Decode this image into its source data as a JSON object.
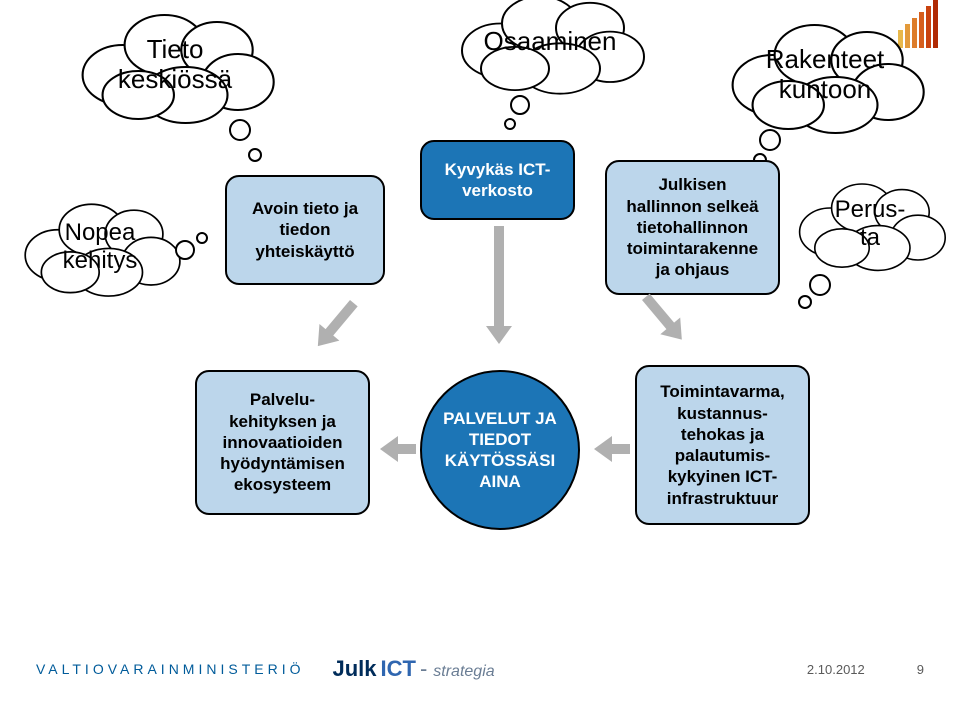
{
  "clouds": {
    "tieto": {
      "label": "Tieto\nkeskiössä"
    },
    "osaaminen": {
      "label": "Osaaminen"
    },
    "rakenteet": {
      "label": "Rakenteet\nkuntoon"
    },
    "nopea": {
      "label": "Nopea\nkehitys"
    },
    "perusta": {
      "label": "Perus-\nta"
    }
  },
  "boxes": {
    "avoin": {
      "label": "Avoin tieto ja\ntiedon\nyhteiskäyttö",
      "bg": "#bcd6eb"
    },
    "kyvykas": {
      "label": "Kyvykäs ICT-\nverkosto",
      "bg": "#1c75b6",
      "fg": "#ffffff"
    },
    "julkinen": {
      "label": "Julkisen\nhallinnon selkeä\ntietohallinnon\ntoimintarakenne\nja ohjaus",
      "bg": "#bcd6eb"
    },
    "palvelu": {
      "label": "Palvelu-\nkehityksen ja\ninnovaatioiden\nhyödyntämisen\nekosysteem",
      "bg": "#bcd6eb"
    },
    "toiminta": {
      "label": "Toimintavarma,\nkustannus-\ntehokas ja\npalautumis-\nkykyinen ICT-\ninfrastruktuur",
      "bg": "#bcd6eb"
    }
  },
  "center": {
    "label": "PALVELUT JA\nTIEDOT\nKÄYTÖSSÄSI\nAINA",
    "bg": "#1c75b6",
    "fg": "#ffffff"
  },
  "arrow_fill": "#b0b0b0",
  "cloud_stroke": "#000000",
  "cloud_fill": "#ffffff",
  "footer": {
    "ministry": "VALTIOVARAINMINISTERIÖ",
    "logo_julk": "Julk",
    "logo_ict": "ICT",
    "logo_strat": "strategia",
    "date": "2.10.2012",
    "page": "9"
  },
  "accent_colors": [
    "#e8b84a",
    "#e39a3a",
    "#dd7c2b",
    "#d65e1d",
    "#c9420f",
    "#b02a05"
  ],
  "accent_heights": [
    18,
    24,
    30,
    36,
    42,
    48
  ]
}
